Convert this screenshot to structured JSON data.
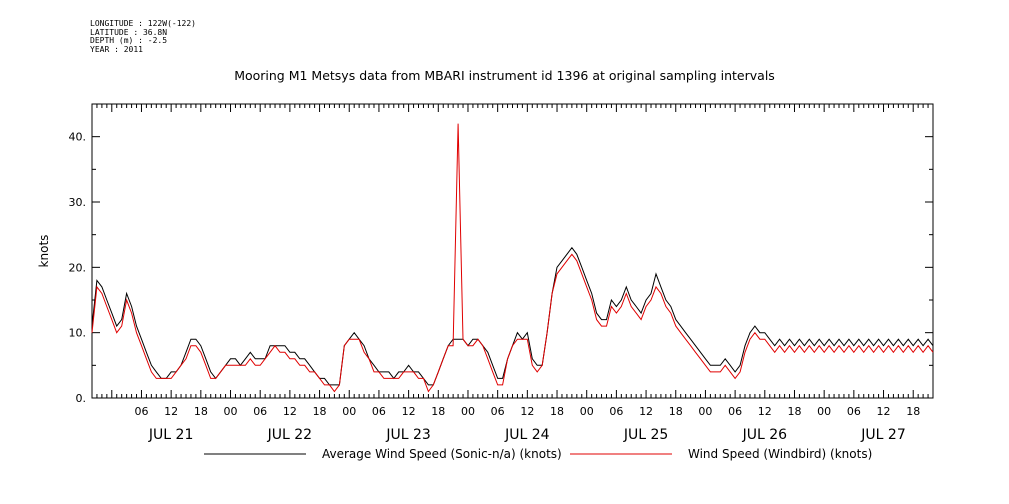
{
  "header": {
    "longitude_label": "LONGITUDE : 122W(-122)",
    "latitude_label": "LATITUDE : 36.8N",
    "depth_label": "DEPTH (m) : -2.5",
    "year_label": "YEAR : 2011"
  },
  "chart_data": {
    "type": "line",
    "title": "Mooring M1 Metsys data from MBARI instrument id 1396 at original sampling intervals",
    "ylabel": "knots",
    "xlabel": "",
    "ylim": [
      0,
      45
    ],
    "xlim_hours": [
      0,
      170
    ],
    "x_units": "hours from 2011-07-20 20:00",
    "y_ticks": [
      "0.",
      "10.",
      "20.",
      "30.",
      "40."
    ],
    "x_hour_ticks": [
      {
        "label": "06",
        "h": 10
      },
      {
        "label": "12",
        "h": 16
      },
      {
        "label": "18",
        "h": 22
      },
      {
        "label": "00",
        "h": 28
      },
      {
        "label": "06",
        "h": 34
      },
      {
        "label": "12",
        "h": 40
      },
      {
        "label": "18",
        "h": 46
      },
      {
        "label": "00",
        "h": 52
      },
      {
        "label": "06",
        "h": 58
      },
      {
        "label": "12",
        "h": 64
      },
      {
        "label": "18",
        "h": 70
      },
      {
        "label": "00",
        "h": 76
      },
      {
        "label": "06",
        "h": 82
      },
      {
        "label": "12",
        "h": 88
      },
      {
        "label": "18",
        "h": 94
      },
      {
        "label": "00",
        "h": 100
      },
      {
        "label": "06",
        "h": 106
      },
      {
        "label": "12",
        "h": 112
      },
      {
        "label": "18",
        "h": 118
      },
      {
        "label": "00",
        "h": 124
      },
      {
        "label": "06",
        "h": 130
      },
      {
        "label": "12",
        "h": 136
      },
      {
        "label": "18",
        "h": 142
      },
      {
        "label": "00",
        "h": 148
      },
      {
        "label": "06",
        "h": 154
      },
      {
        "label": "12",
        "h": 160
      },
      {
        "label": "18",
        "h": 166
      }
    ],
    "day_labels": [
      {
        "label": "JUL 21",
        "h": 16
      },
      {
        "label": "JUL 22",
        "h": 40
      },
      {
        "label": "JUL 23",
        "h": 64
      },
      {
        "label": "JUL 24",
        "h": 88
      },
      {
        "label": "JUL 25",
        "h": 112
      },
      {
        "label": "JUL 26",
        "h": 136
      },
      {
        "label": "JUL 27",
        "h": 160
      }
    ],
    "legend_placement": "bottom",
    "series": [
      {
        "name": "Average Wind Speed (Sonic-n/a) (knots)",
        "color": "#000000",
        "x": [
          0,
          1,
          2,
          3,
          4,
          5,
          6,
          7,
          8,
          9,
          10,
          11,
          12,
          13,
          14,
          15,
          16,
          17,
          18,
          19,
          20,
          21,
          22,
          23,
          24,
          25,
          26,
          27,
          28,
          29,
          30,
          31,
          32,
          33,
          34,
          35,
          36,
          37,
          38,
          39,
          40,
          41,
          42,
          43,
          44,
          45,
          46,
          47,
          48,
          49,
          50,
          51,
          52,
          53,
          54,
          55,
          56,
          57,
          58,
          59,
          60,
          61,
          62,
          63,
          64,
          65,
          66,
          67,
          68,
          69,
          70,
          71,
          72,
          73,
          74,
          75,
          76,
          77,
          78,
          79,
          80,
          81,
          82,
          83,
          84,
          85,
          86,
          87,
          88,
          89,
          90,
          91,
          92,
          93,
          94,
          95,
          96,
          97,
          98,
          99,
          100,
          101,
          102,
          103,
          104,
          105,
          106,
          107,
          108,
          109,
          110,
          111,
          112,
          113,
          114,
          115,
          116,
          117,
          118,
          119,
          120,
          121,
          122,
          123,
          124,
          125,
          126,
          127,
          128,
          129,
          130,
          131,
          132,
          133,
          134,
          135,
          136,
          137,
          138,
          139,
          140,
          141,
          142,
          143,
          144,
          145,
          146,
          147,
          148,
          149,
          150,
          151,
          152,
          153,
          154,
          155,
          156,
          157,
          158,
          159,
          160,
          161,
          162,
          163,
          164,
          165,
          166,
          167,
          168,
          169,
          170
        ],
        "values": [
          11,
          18,
          17,
          15,
          13,
          11,
          12,
          16,
          14,
          11,
          9,
          7,
          5,
          4,
          3,
          3,
          4,
          4,
          5,
          7,
          9,
          9,
          8,
          6,
          4,
          3,
          4,
          5,
          6,
          6,
          5,
          6,
          7,
          6,
          6,
          6,
          8,
          8,
          8,
          8,
          7,
          7,
          6,
          6,
          5,
          4,
          3,
          3,
          2,
          2,
          2,
          8,
          9,
          10,
          9,
          8,
          6,
          5,
          4,
          4,
          4,
          3,
          4,
          4,
          5,
          4,
          4,
          3,
          2,
          2,
          4,
          6,
          8,
          9,
          9,
          9,
          8,
          9,
          9,
          8,
          7,
          5,
          3,
          3,
          6,
          8,
          10,
          9,
          10,
          6,
          5,
          5,
          10,
          16,
          20,
          21,
          22,
          23,
          22,
          20,
          18,
          16,
          13,
          12,
          12,
          15,
          14,
          15,
          17,
          15,
          14,
          13,
          15,
          16,
          19,
          17,
          15,
          14,
          12,
          11,
          10,
          9,
          8,
          7,
          6,
          5,
          5,
          5,
          6,
          5,
          4,
          5,
          8,
          10,
          11,
          10,
          10,
          9,
          8,
          9,
          8,
          9,
          8,
          9,
          8,
          9,
          8,
          9,
          8,
          9,
          8,
          9,
          8,
          9,
          8,
          9,
          8,
          9,
          8,
          9,
          8,
          9,
          8,
          9,
          8,
          9,
          8,
          9,
          8,
          9,
          8
        ]
      },
      {
        "name": "Wind Speed (Windbird) (knots)",
        "color": "#e00000",
        "x": [
          0,
          1,
          2,
          3,
          4,
          5,
          6,
          7,
          8,
          9,
          10,
          11,
          12,
          13,
          14,
          15,
          16,
          17,
          18,
          19,
          20,
          21,
          22,
          23,
          24,
          25,
          26,
          27,
          28,
          29,
          30,
          31,
          32,
          33,
          34,
          35,
          36,
          37,
          38,
          39,
          40,
          41,
          42,
          43,
          44,
          45,
          46,
          47,
          48,
          49,
          50,
          51,
          52,
          53,
          54,
          55,
          56,
          57,
          58,
          59,
          60,
          61,
          62,
          63,
          64,
          65,
          66,
          67,
          68,
          69,
          70,
          71,
          72,
          73,
          74,
          75,
          76,
          77,
          78,
          79,
          80,
          81,
          82,
          83,
          84,
          85,
          86,
          87,
          88,
          89,
          90,
          91,
          92,
          93,
          94,
          95,
          96,
          97,
          98,
          99,
          100,
          101,
          102,
          103,
          104,
          105,
          106,
          107,
          108,
          109,
          110,
          111,
          112,
          113,
          114,
          115,
          116,
          117,
          118,
          119,
          120,
          121,
          122,
          123,
          124,
          125,
          126,
          127,
          128,
          129,
          130,
          131,
          132,
          133,
          134,
          135,
          136,
          137,
          138,
          139,
          140,
          141,
          142,
          143,
          144,
          145,
          146,
          147,
          148,
          149,
          150,
          151,
          152,
          153,
          154,
          155,
          156,
          157,
          158,
          159,
          160,
          161,
          162,
          163,
          164,
          165,
          166,
          167,
          168,
          169,
          170
        ],
        "values": [
          10,
          17,
          16,
          14,
          12,
          10,
          11,
          15,
          13,
          10,
          8,
          6,
          4,
          3,
          3,
          3,
          3,
          4,
          5,
          6,
          8,
          8,
          7,
          5,
          3,
          3,
          4,
          5,
          5,
          5,
          5,
          5,
          6,
          5,
          5,
          6,
          7,
          8,
          7,
          7,
          6,
          6,
          5,
          5,
          4,
          4,
          3,
          2,
          2,
          1,
          2,
          8,
          9,
          9,
          9,
          7,
          6,
          4,
          4,
          3,
          3,
          3,
          3,
          4,
          4,
          4,
          3,
          3,
          1,
          2,
          4,
          6,
          8,
          8,
          42,
          9,
          8,
          8,
          9,
          8,
          6,
          4,
          2,
          2,
          6,
          8,
          9,
          9,
          9,
          5,
          4,
          5,
          10,
          16,
          19,
          20,
          21,
          22,
          21,
          19,
          17,
          15,
          12,
          11,
          11,
          14,
          13,
          14,
          16,
          14,
          13,
          12,
          14,
          15,
          17,
          16,
          14,
          13,
          11,
          10,
          9,
          8,
          7,
          6,
          5,
          4,
          4,
          4,
          5,
          4,
          3,
          4,
          7,
          9,
          10,
          9,
          9,
          8,
          7,
          8,
          7,
          8,
          7,
          8,
          7,
          8,
          7,
          8,
          7,
          8,
          7,
          8,
          7,
          8,
          7,
          8,
          7,
          8,
          7,
          8,
          7,
          8,
          7,
          8,
          7,
          8,
          7,
          8,
          7,
          8,
          7
        ]
      }
    ]
  }
}
